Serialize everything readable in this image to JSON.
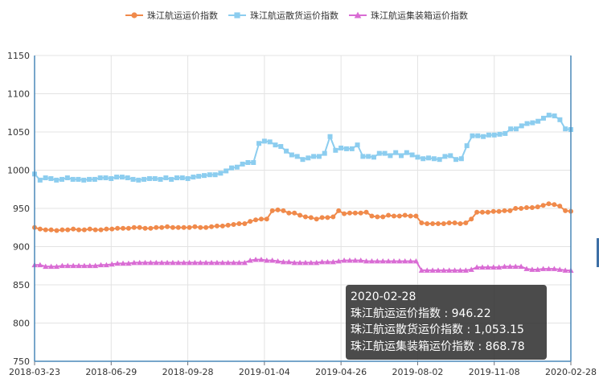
{
  "chart_data": {
    "type": "line",
    "ylim": [
      750,
      1150
    ],
    "yticks": [
      750,
      800,
      850,
      900,
      950,
      1000,
      1050,
      1100,
      1150
    ],
    "x_tick_labels": [
      "2018-03-23",
      "2018-06-29",
      "2018-09-28",
      "2019-01-04",
      "2019-04-26",
      "2019-08-02",
      "2019-11-08",
      "2020-02-28"
    ],
    "grid": true,
    "legend_position": "top-center",
    "series": [
      {
        "name": "珠江航运运价指数",
        "color": "#f08a4b",
        "marker": "circle",
        "values": [
          925,
          923,
          922,
          922,
          921,
          922,
          922,
          923,
          922,
          922,
          923,
          922,
          922,
          923,
          923,
          924,
          924,
          924,
          925,
          925,
          924,
          924,
          925,
          925,
          926,
          925,
          925,
          925,
          925,
          926,
          925,
          925,
          926,
          927,
          927,
          928,
          929,
          930,
          930,
          933,
          935,
          936,
          936,
          947,
          948,
          947,
          944,
          944,
          941,
          939,
          938,
          936,
          938,
          938,
          939,
          947,
          943,
          944,
          944,
          944,
          945,
          940,
          939,
          939,
          941,
          940,
          940,
          941,
          940,
          940,
          931,
          930,
          930,
          930,
          930,
          931,
          931,
          930,
          931,
          936,
          945,
          945,
          945,
          946,
          946,
          947,
          947,
          950,
          950,
          951,
          951,
          952,
          954,
          956,
          955,
          953,
          947,
          946.22
        ]
      },
      {
        "name": "珠江航运散货运价指数",
        "color": "#8ccdef",
        "marker": "square",
        "values": [
          995,
          987,
          990,
          989,
          987,
          988,
          990,
          988,
          988,
          987,
          988,
          988,
          990,
          990,
          989,
          991,
          991,
          990,
          988,
          987,
          988,
          989,
          989,
          988,
          990,
          988,
          990,
          990,
          989,
          991,
          992,
          993,
          994,
          994,
          996,
          999,
          1003,
          1004,
          1008,
          1010,
          1010,
          1035,
          1038,
          1037,
          1033,
          1031,
          1025,
          1020,
          1018,
          1014,
          1016,
          1018,
          1018,
          1022,
          1044,
          1026,
          1029,
          1028,
          1028,
          1033,
          1018,
          1018,
          1017,
          1022,
          1022,
          1019,
          1023,
          1019,
          1023,
          1020,
          1017,
          1015,
          1016,
          1015,
          1014,
          1018,
          1019,
          1014,
          1015,
          1032,
          1045,
          1045,
          1044,
          1046,
          1046,
          1047,
          1048,
          1054,
          1054,
          1058,
          1061,
          1062,
          1064,
          1068,
          1072,
          1071,
          1066,
          1054,
          1053.15
        ]
      },
      {
        "name": "珠江航运集装箱运价指数",
        "color": "#d96cd4",
        "marker": "triangle",
        "values": [
          876,
          876,
          874,
          874,
          874,
          875,
          875,
          875,
          875,
          875,
          875,
          875,
          876,
          876,
          877,
          878,
          878,
          878,
          879,
          879,
          879,
          879,
          879,
          879,
          879,
          879,
          879,
          879,
          879,
          879,
          879,
          879,
          879,
          879,
          879,
          879,
          879,
          879,
          879,
          882,
          883,
          883,
          882,
          882,
          881,
          880,
          880,
          879,
          879,
          879,
          879,
          879,
          880,
          880,
          880,
          881,
          882,
          882,
          882,
          882,
          881,
          881,
          881,
          881,
          881,
          881,
          881,
          881,
          881,
          881,
          869,
          869,
          869,
          869,
          869,
          869,
          869,
          869,
          869,
          870,
          873,
          873,
          873,
          873,
          873,
          874,
          874,
          874,
          874,
          871,
          870,
          870,
          871,
          871,
          871,
          870,
          869,
          868.78
        ]
      }
    ]
  },
  "tooltip": {
    "date": "2020-02-28",
    "line1": "珠江航运运价指数 : 946.22",
    "line2": "珠江航运散货运价指数 : 1,053.15",
    "line3": "珠江航运集装箱运价指数 : 868.78"
  }
}
